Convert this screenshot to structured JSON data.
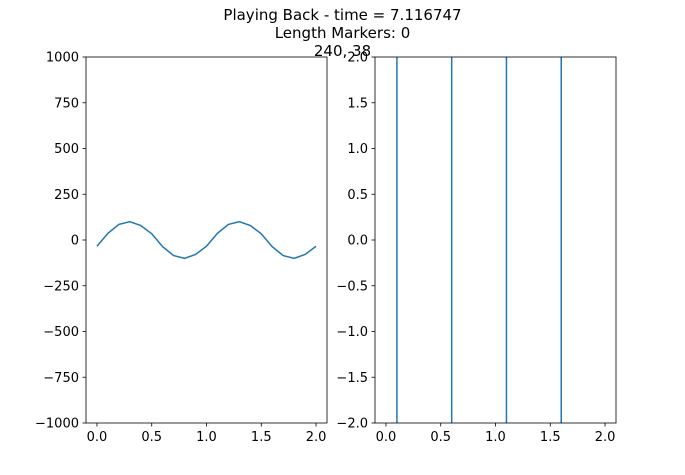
{
  "title_lines": [
    "Playing Back - time = 7.116747",
    "Length Markers: 0",
    "240, 38"
  ],
  "chart_data": [
    {
      "type": "line",
      "xlim": [
        -0.1,
        2.1
      ],
      "ylim": [
        -1000,
        1000
      ],
      "xticks": [
        0.0,
        0.5,
        1.0,
        1.5,
        2.0
      ],
      "xtick_labels": [
        "0.0",
        "0.5",
        "1.0",
        "1.5",
        "2.0"
      ],
      "yticks": [
        1000,
        750,
        500,
        250,
        0,
        -250,
        -500,
        -750,
        -1000
      ],
      "ytick_labels": [
        "1000",
        "750",
        "500",
        "250",
        "0",
        "−250",
        "−500",
        "−750",
        "−1000"
      ],
      "grid": false,
      "series": [
        {
          "color": "#1f77b4",
          "x": [
            0.0,
            0.1,
            0.2,
            0.3,
            0.4,
            0.5,
            0.6,
            0.7,
            0.8,
            0.9,
            1.0,
            1.1,
            1.2,
            1.3,
            1.4,
            1.5,
            1.6,
            1.7,
            1.8,
            1.9,
            2.0
          ],
          "y": [
            -34,
            37,
            85,
            100,
            79,
            34,
            -37,
            -85,
            -100,
            -79,
            -34,
            37,
            85,
            100,
            79,
            34,
            -37,
            -85,
            -100,
            -79,
            -34
          ]
        }
      ]
    },
    {
      "type": "line",
      "xlim": [
        -0.1,
        2.1
      ],
      "ylim": [
        -2.0,
        2.0
      ],
      "xticks": [
        0.0,
        0.5,
        1.0,
        1.5,
        2.0
      ],
      "xtick_labels": [
        "0.0",
        "0.5",
        "1.0",
        "1.5",
        "2.0"
      ],
      "yticks": [
        2.0,
        1.5,
        1.0,
        0.5,
        0.0,
        -0.5,
        -1.0,
        -1.5,
        -2.0
      ],
      "ytick_labels": [
        "2.0",
        "1.5",
        "1.0",
        "0.5",
        "0.0",
        "−0.5",
        "−1.0",
        "−1.5",
        "−2.0"
      ],
      "grid": false,
      "series": [
        {
          "color": "#1f77b4",
          "x": [
            0.1,
            0.1,
            0.1,
            0.6,
            0.6,
            0.6,
            1.1,
            1.1,
            1.1,
            1.6,
            1.6,
            1.6
          ],
          "y": [
            -2.0,
            2.0,
            null,
            2.0,
            -2.0,
            null,
            -2.0,
            2.0,
            null,
            2.0,
            -2.0,
            null
          ]
        }
      ]
    }
  ]
}
